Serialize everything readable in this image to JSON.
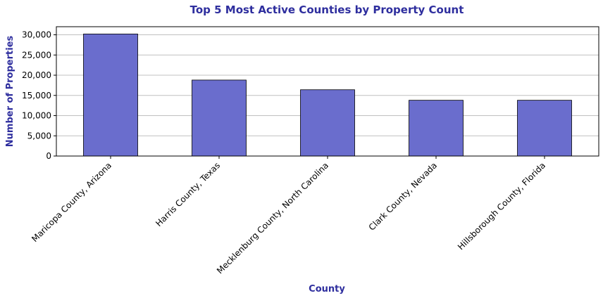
{
  "chart_data": {
    "type": "bar",
    "title": "Top 5 Most Active Counties by Property Count",
    "xlabel": "County",
    "ylabel": "Number of Properties",
    "categories": [
      "Maricopa County, Arizona",
      "Harris County, Texas",
      "Mecklenburg County, North Carolina",
      "Clark County, Nevada",
      "Hillsborough County, Florida"
    ],
    "values": [
      30200,
      18800,
      16400,
      13800,
      13800
    ],
    "ylim": [
      0,
      32000
    ],
    "yticks": [
      0,
      5000,
      10000,
      15000,
      20000,
      25000,
      30000
    ],
    "ytick_labels": [
      "0",
      "5,000",
      "10,000",
      "15,000",
      "20,000",
      "25,000",
      "30,000"
    ],
    "grid": "horizontal",
    "legend": "none",
    "colors": {
      "bar_fill": "#6a6dcd",
      "bar_edge": "#000000",
      "title": "#2e2e9e",
      "axis_label": "#2e2e9e",
      "grid": "#c0c0c0"
    }
  }
}
